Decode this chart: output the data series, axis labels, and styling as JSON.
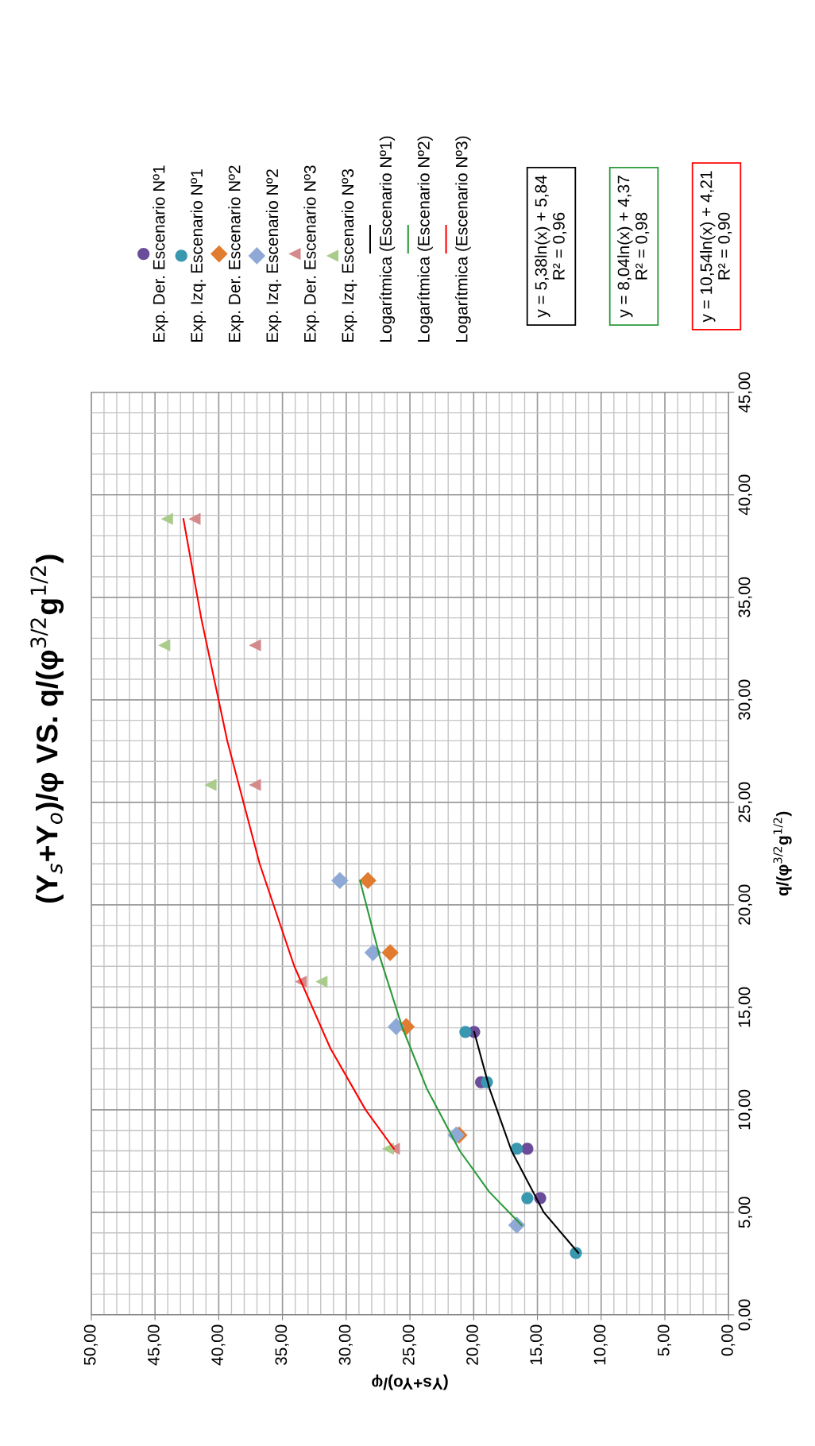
{
  "chart_data": {
    "type": "scatter",
    "title": "(Y$_{s}$+Y$_{o}$)/φ VS. q/(φ$^{3/2}$g$^{1/2}$)",
    "xlabel": "(Ys+Yo)/φ",
    "ylabel": "q/(φ$^{3/2}$g$^{1/2}$)",
    "xlim": [
      50,
      0
    ],
    "ylim": [
      0,
      45
    ],
    "xticks": [
      {
        "value": 0,
        "label": "0,00"
      },
      {
        "value": 5,
        "label": "5,00"
      },
      {
        "value": 10,
        "label": "10,00"
      },
      {
        "value": 15,
        "label": "15,00"
      },
      {
        "value": 20,
        "label": "20,00"
      },
      {
        "value": 25,
        "label": "25,00"
      },
      {
        "value": 30,
        "label": "30,00"
      },
      {
        "value": 35,
        "label": "35,00"
      },
      {
        "value": 40,
        "label": "40,00"
      },
      {
        "value": 45,
        "label": "45,00"
      },
      {
        "value": 50,
        "label": "50,00"
      }
    ],
    "yticks": [
      {
        "value": 0,
        "label": "0,00"
      },
      {
        "value": 5,
        "label": "5,00"
      },
      {
        "value": 10,
        "label": "10,00"
      },
      {
        "value": 15,
        "label": "15,00"
      },
      {
        "value": 20,
        "label": "20,00"
      },
      {
        "value": 25,
        "label": "25,00"
      },
      {
        "value": 30,
        "label": "30,00"
      },
      {
        "value": 35,
        "label": "35,00"
      },
      {
        "value": 40,
        "label": "40,00"
      },
      {
        "value": 45,
        "label": "45,00"
      }
    ],
    "grid": true,
    "legend": "top",
    "series": [
      {
        "name": "Exp. Der. Escenario Nº1",
        "marker": "circle",
        "color": "#6b4c9a",
        "x": [
          19.96,
          19.42,
          15.79,
          14.78
        ],
        "values": [
          13.8,
          11.35,
          8.1,
          5.69
        ]
      },
      {
        "name": "Exp. Izq. Escenario Nº1",
        "marker": "circle",
        "color": "#3a97b0",
        "x": [
          20.65,
          18.96,
          16.62,
          15.79,
          11.98
        ],
        "values": [
          13.8,
          11.35,
          8.1,
          5.69,
          3.02
        ]
      },
      {
        "name": "Exp. Der. Escenario Nº2",
        "marker": "diamond",
        "color": "#e07b30",
        "x": [
          28.3,
          26.55,
          25.29,
          21.15
        ],
        "values": [
          21.19,
          17.67,
          14.06,
          8.77
        ]
      },
      {
        "name": "Exp. Izq. Escenario Nº2",
        "marker": "diamond",
        "color": "#8ea9d6",
        "x": [
          30.5,
          27.9,
          26.08,
          21.37,
          16.62
        ],
        "values": [
          21.19,
          17.67,
          14.06,
          8.77,
          4.38
        ]
      },
      {
        "name": "Exp. Der. Escenario Nº3",
        "marker": "triangle",
        "color": "#d48a8a",
        "x": [
          41.9,
          37.16,
          37.16,
          33.56,
          26.26
        ],
        "values": [
          38.82,
          32.66,
          25.85,
          16.25,
          8.1
        ]
      },
      {
        "name": "Exp. Izq. Escenario Nº3",
        "marker": "triangle",
        "color": "#a9cc8a",
        "x": [
          44.06,
          44.28,
          40.65,
          31.94,
          26.73
        ],
        "values": [
          38.82,
          32.66,
          25.85,
          16.25,
          8.1
        ]
      },
      {
        "name": "Logarítmica (Escenario Nº1)",
        "type": "line",
        "color": "#000000",
        "x": [
          11.79,
          14.5,
          17.03,
          18.74,
          19.96
        ],
        "values": [
          3.02,
          5,
          8,
          11,
          13.8
        ]
      },
      {
        "name": "Logarítmica (Escenario Nº2)",
        "type": "line",
        "color": "#2a9a3a",
        "x": [
          16.25,
          18.78,
          21.09,
          23.65,
          25.59,
          27.38,
          28.92
        ],
        "values": [
          4.38,
          6,
          8,
          11,
          14,
          17.5,
          21.19
        ]
      },
      {
        "name": "Logarítmica (Escenario Nº3)",
        "type": "line",
        "color": "#ff0000",
        "x": [
          26.26,
          28.48,
          31.24,
          34.07,
          36.79,
          39.33,
          41.38,
          42.77
        ],
        "values": [
          8.1,
          10,
          13,
          17,
          22,
          28,
          34,
          38.82
        ]
      }
    ],
    "annotations": [
      "y = 5,38ln(x) + 5,84\nR² = 0,96",
      "y = 8,04ln(x) + 4,37\nR² = 0,98",
      "y = 10,54ln(x) + 4,21\nR² = 0,90"
    ]
  }
}
